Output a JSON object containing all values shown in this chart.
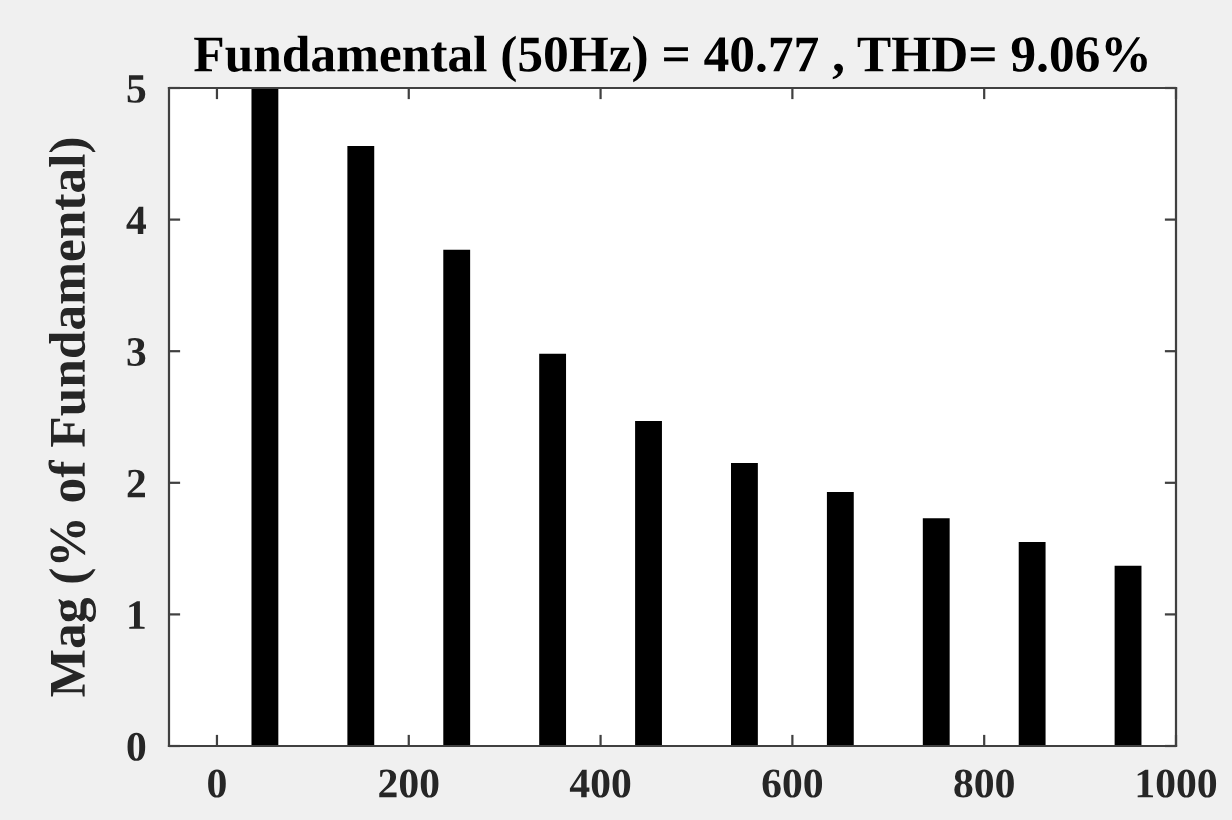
{
  "chart_data": {
    "type": "bar",
    "title": "Fundamental (50Hz) = 40.77 , THD= 9.06%",
    "ylabel": "Mag (% of Fundamental)",
    "x": [
      50,
      150,
      250,
      350,
      450,
      550,
      650,
      750,
      850,
      950
    ],
    "values": [
      5,
      4.56,
      3.77,
      2.98,
      2.47,
      2.15,
      1.93,
      1.73,
      1.55,
      1.37
    ],
    "color": "#000000",
    "xlim": [
      -50,
      1000
    ],
    "xticks": [
      0,
      200,
      400,
      600,
      800,
      1000
    ],
    "ylim": [
      0,
      5
    ],
    "yticks": [
      0,
      1,
      2,
      3,
      4,
      5
    ]
  }
}
